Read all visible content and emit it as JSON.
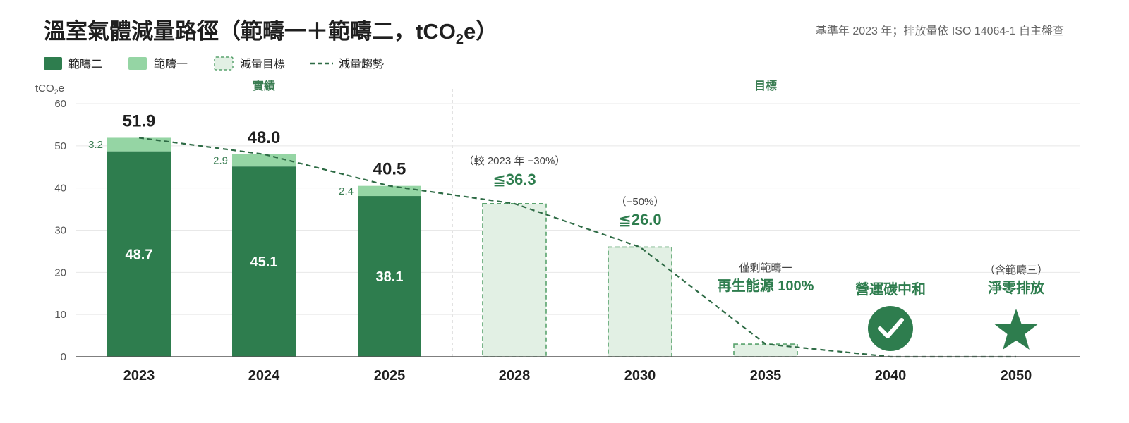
{
  "title_main": "溫室氣體減量路徑（範疇一＋範疇二，tCO",
  "title_sub": "2",
  "title_end": "e）",
  "base_note": "基準年 2023 年；排放量依 ISO 14064-1 自主盤查",
  "legend": {
    "scope2": "範疇二",
    "scope1": "範疇一",
    "target": "減量目標",
    "trend": "減量趨勢"
  },
  "y_unit_main": "tCO",
  "y_unit_sub": "2",
  "y_unit_end": "e",
  "section_actual": "實績",
  "section_target": "目標",
  "colors": {
    "scope2": "#2e7d4e",
    "scope1": "#95d5a4",
    "target_fill": "#e2f0e4",
    "target_stroke": "#5aa36e",
    "trend": "#2e6b45",
    "grid": "#e8e8e8",
    "axis": "#555555"
  },
  "icons": {
    "carbon_neutral": "check-circle-icon",
    "net_zero": "star-icon"
  },
  "chart_data": {
    "type": "bar",
    "stacked": true,
    "ylim": [
      0,
      60
    ],
    "yticks": [
      0,
      10,
      20,
      30,
      40,
      50,
      60
    ],
    "grid": true,
    "legend_position": "top-left",
    "categories": [
      "2023",
      "2024",
      "2025",
      "2028",
      "2030",
      "2035",
      "2040",
      "2050"
    ],
    "actual": [
      {
        "year": "2023",
        "scope2": 48.7,
        "scope1": 3.2,
        "total": 51.9,
        "scope2_label": "48.7",
        "scope1_label": "3.2",
        "total_label": "51.9"
      },
      {
        "year": "2024",
        "scope2": 45.1,
        "scope1": 2.9,
        "total": 48.0,
        "scope2_label": "45.1",
        "scope1_label": "2.9",
        "total_label": "48.0"
      },
      {
        "year": "2025",
        "scope2": 38.1,
        "scope1": 2.4,
        "total": 40.5,
        "scope2_label": "38.1",
        "scope1_label": "2.4",
        "total_label": "40.5"
      }
    ],
    "targets": [
      {
        "year": "2028",
        "value": 36.3,
        "sub": "（較 2023 年 −30%）",
        "label": "≦36.3"
      },
      {
        "year": "2030",
        "value": 26.0,
        "sub": "（−50%）",
        "label": "≦26.0"
      },
      {
        "year": "2035",
        "value": 3.0,
        "sub": "僅剩範疇一",
        "label": "再生能源 100%"
      },
      {
        "year": "2040",
        "value": 0,
        "sub": "",
        "label": "營運碳中和"
      },
      {
        "year": "2050",
        "value": 0,
        "sub": "（含範疇三）",
        "label": "淨零排放"
      }
    ],
    "trend": [
      {
        "x": "2023",
        "y": 51.9
      },
      {
        "x": "2024",
        "y": 48.0
      },
      {
        "x": "2025",
        "y": 40.5
      },
      {
        "x": "2028",
        "y": 36.3
      },
      {
        "x": "2030",
        "y": 26.0
      },
      {
        "x": "2035",
        "y": 3.0
      },
      {
        "x": "2040",
        "y": 0
      },
      {
        "x": "2050",
        "y": 0
      }
    ]
  }
}
